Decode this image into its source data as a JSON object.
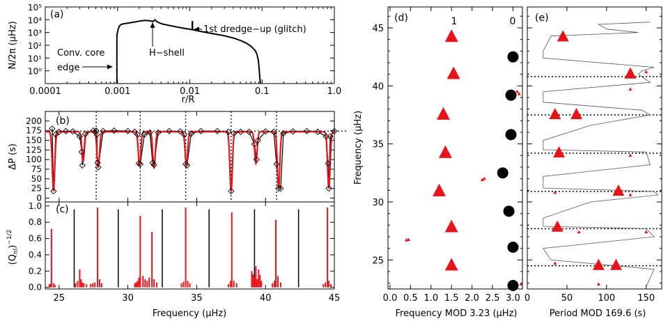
{
  "colors": {
    "red": "#e8141b",
    "black": "#000000",
    "gray": "#555555"
  },
  "panel_a": {
    "label": "(a)",
    "ylabel": "N/2π (μHz)",
    "xlabel": "r/R",
    "x_ticks": [
      "0.0001",
      "0.001",
      "0.01",
      "0.1",
      "1.0"
    ],
    "y_ticks": [
      "10⁰",
      "10¹",
      "10²",
      "10³",
      "10⁴",
      "10⁵"
    ],
    "ann_core": "Conv. core",
    "ann_edge": "edge",
    "ann_hshell": "H−shell",
    "ann_dredge": "1st dredge−up (glitch)"
  },
  "panel_b": {
    "label": "(b)",
    "ylabel": "ΔP (s)",
    "y_ticks": [
      "0",
      "25",
      "50",
      "75",
      "100",
      "125",
      "150",
      "175",
      "200"
    ]
  },
  "panel_c": {
    "label": "(c)",
    "ylabel": "(Q_nl)^−1/2",
    "y_ticks": [
      "0.0",
      "0.2",
      "0.4",
      "0.6",
      "0.8",
      "1.0"
    ],
    "x_ticks": [
      "25",
      "30",
      "35",
      "40",
      "45"
    ],
    "xlabel": "Frequency (μHz)"
  },
  "panel_d": {
    "label": "(d)",
    "deg1": "1",
    "deg0": "0",
    "ylabel": "Frequency (μHz)",
    "xlabel": "Frequency MOD 3.23 (μHz)",
    "x_ticks": [
      "0.0",
      "0.5",
      "1.0",
      "1.5",
      "2.0",
      "2.5",
      "3.0"
    ],
    "y_ticks": [
      "25",
      "30",
      "35",
      "40",
      "45"
    ]
  },
  "panel_e": {
    "label": "(e)",
    "xlabel": "Period MOD 169.6 (s)",
    "x_ticks": [
      "0",
      "50",
      "100",
      "150"
    ]
  },
  "chart_data": [
    {
      "type": "line",
      "panel": "a",
      "xscale": "log",
      "yscale": "log",
      "xlim": [
        0.0001,
        1.0
      ],
      "ylim": [
        0.1,
        100000
      ],
      "xlabel": "r/R",
      "ylabel": "N/2π (μHz)",
      "x": [
        0.00098,
        0.00098,
        0.00102,
        0.00106,
        0.00112,
        0.0012,
        0.0014,
        0.0017,
        0.002,
        0.0024,
        0.0028,
        0.0031,
        0.0033,
        0.0035,
        0.0038,
        0.0042,
        0.005,
        0.006,
        0.008,
        0.0105,
        0.0108,
        0.0108,
        0.0109,
        0.0109,
        0.012,
        0.015,
        0.02,
        0.03,
        0.04,
        0.05,
        0.06,
        0.07,
        0.08,
        0.085,
        0.089,
        0.091,
        0.093,
        0.095
      ],
      "y": [
        0.1,
        600,
        1800,
        3200,
        4200,
        4800,
        5500,
        6500,
        7800,
        9000,
        8200,
        7200,
        9800,
        7000,
        5600,
        4600,
        3700,
        3000,
        2200,
        1700,
        1700,
        7000,
        7000,
        1650,
        1450,
        1150,
        850,
        560,
        370,
        240,
        150,
        85,
        40,
        20,
        6,
        1.5,
        0.3,
        0.1
      ]
    },
    {
      "type": "scatter",
      "panel": "b",
      "xlim": [
        24,
        45
      ],
      "ylim": [
        -10,
        225
      ],
      "xlabel": "Frequency (μHz)",
      "ylabel": "ΔP (s)",
      "asymptote": 174,
      "dotted_vlines": [
        27.7,
        30.9,
        34.2,
        37.5,
        40.8
      ],
      "markers": [
        [
          24.5,
          180
        ],
        [
          24.6,
          18
        ],
        [
          24.75,
          165
        ],
        [
          25,
          172
        ],
        [
          25.5,
          174
        ],
        [
          26,
          173
        ],
        [
          26.5,
          160
        ],
        [
          26.65,
          120
        ],
        [
          26.7,
          85
        ],
        [
          26.9,
          166
        ],
        [
          27.5,
          175
        ],
        [
          27.7,
          175
        ],
        [
          27.75,
          165
        ],
        [
          27.8,
          92
        ],
        [
          27.85,
          80
        ],
        [
          28.2,
          174
        ],
        [
          29,
          175
        ],
        [
          30,
          174
        ],
        [
          30.5,
          172
        ],
        [
          30.7,
          165
        ],
        [
          30.8,
          90
        ],
        [
          30.9,
          88
        ],
        [
          31.2,
          165
        ],
        [
          31.6,
          170
        ],
        [
          31.8,
          92
        ],
        [
          31.9,
          86
        ],
        [
          32.2,
          170
        ],
        [
          33,
          174
        ],
        [
          33.8,
          173
        ],
        [
          34.1,
          165
        ],
        [
          34.2,
          88
        ],
        [
          34.3,
          85
        ],
        [
          34.6,
          167
        ],
        [
          35.3,
          174
        ],
        [
          36.5,
          174
        ],
        [
          37.3,
          172
        ],
        [
          37.5,
          18
        ],
        [
          37.7,
          168
        ],
        [
          38.2,
          172
        ],
        [
          38.8,
          172
        ],
        [
          39.2,
          140
        ],
        [
          39.35,
          100
        ],
        [
          39.45,
          150
        ],
        [
          40,
          173
        ],
        [
          40.6,
          172
        ],
        [
          40.8,
          88
        ],
        [
          40.95,
          25
        ],
        [
          41.1,
          25
        ],
        [
          41.3,
          168
        ],
        [
          42,
          173
        ],
        [
          43,
          174
        ],
        [
          43.8,
          172
        ],
        [
          44.4,
          160
        ],
        [
          44.55,
          90
        ],
        [
          44.6,
          25
        ],
        [
          44.7,
          160
        ],
        [
          45,
          174
        ]
      ],
      "model_dips": [
        [
          24.6,
          18
        ],
        [
          26.75,
          95
        ],
        [
          27.85,
          80
        ],
        [
          30.85,
          85
        ],
        [
          31.9,
          80
        ],
        [
          34.25,
          85
        ],
        [
          37.5,
          18
        ],
        [
          39.3,
          90
        ],
        [
          40.95,
          25
        ],
        [
          44.6,
          25
        ]
      ]
    },
    {
      "type": "bar",
      "panel": "c",
      "xlim": [
        24,
        45
      ],
      "ylim": [
        -0.02,
        1.05
      ],
      "black_lines": [
        26.1,
        29.3,
        32.5,
        35.9,
        39.2,
        42.4
      ],
      "black_heights": [
        0.96,
        0.96,
        0.96,
        0.96,
        0.96,
        0.96
      ],
      "x": [
        24.3,
        24.4,
        24.45,
        24.6,
        24.7,
        26.2,
        26.35,
        26.5,
        26.6,
        26.7,
        26.8,
        27.0,
        27.3,
        27.45,
        27.6,
        27.8,
        27.95,
        28.1,
        30.5,
        30.6,
        30.7,
        30.8,
        30.9,
        31.1,
        31.25,
        31.4,
        31.55,
        31.75,
        31.9,
        32.1,
        33.9,
        34.05,
        34.2,
        34.35,
        34.5,
        37.3,
        37.45,
        37.55,
        37.7,
        37.9,
        39.0,
        39.1,
        39.2,
        39.3,
        39.4,
        39.5,
        39.6,
        39.7,
        40.5,
        40.65,
        40.75,
        40.9,
        41.1,
        44.2,
        44.35,
        44.5,
        44.6,
        44.75
      ],
      "values": [
        0.04,
        0.04,
        0.72,
        0.05,
        0.03,
        0.05,
        0.08,
        0.22,
        0.1,
        0.06,
        0.05,
        0.04,
        0.04,
        0.05,
        0.06,
        0.98,
        0.1,
        0.05,
        0.05,
        0.06,
        0.08,
        0.12,
        0.88,
        0.14,
        0.1,
        0.08,
        0.12,
        0.68,
        0.1,
        0.06,
        0.05,
        0.07,
        0.98,
        0.08,
        0.05,
        0.04,
        0.08,
        0.92,
        0.08,
        0.05,
        0.2,
        0.16,
        0.12,
        0.26,
        0.1,
        0.22,
        0.15,
        0.08,
        0.05,
        0.08,
        0.83,
        0.14,
        0.06,
        0.04,
        0.06,
        0.98,
        0.08,
        0.04
      ]
    },
    {
      "type": "scatter",
      "panel": "d",
      "xlim": [
        -0.05,
        3.23
      ],
      "ylim": [
        22.5,
        46.8
      ],
      "l1_big": [
        [
          1.5,
          44.2
        ],
        [
          1.55,
          41
        ],
        [
          1.3,
          37.5
        ],
        [
          1.35,
          34.2
        ],
        [
          1.2,
          30.9
        ],
        [
          1.5,
          27.8
        ],
        [
          1.5,
          24.5
        ]
      ],
      "l0_circles": [
        [
          3.0,
          42.5
        ],
        [
          2.95,
          39.2
        ],
        [
          2.95,
          35.8
        ],
        [
          2.75,
          32.5
        ],
        [
          2.9,
          29.2
        ],
        [
          3.0,
          26.1
        ],
        [
          3.0,
          22.8
        ]
      ],
      "small": [
        [
          3.1,
          39.5
        ],
        [
          3.15,
          39.3
        ],
        [
          2.25,
          31.9
        ],
        [
          2.3,
          32.0
        ],
        [
          0.4,
          26.7
        ],
        [
          0.45,
          26.75
        ],
        [
          3.2,
          22.9
        ]
      ]
    },
    {
      "type": "scatter",
      "panel": "e",
      "xlim": [
        0,
        169.6
      ],
      "ylim": [
        22.5,
        46.8
      ],
      "dotted_hlines": [
        24.5,
        27.7,
        30.9,
        34.2,
        37.5,
        40.8
      ],
      "big": [
        [
          45,
          44.2
        ],
        [
          130,
          41
        ],
        [
          35,
          37.5
        ],
        [
          62,
          37.5
        ],
        [
          40,
          34.2
        ],
        [
          115,
          30.9
        ],
        [
          38,
          27.8
        ],
        [
          90,
          24.5
        ],
        [
          112,
          24.5
        ]
      ],
      "small": [
        [
          150,
          41.2
        ],
        [
          130,
          39.7
        ],
        [
          35,
          37.3
        ],
        [
          130,
          34.0
        ],
        [
          35,
          30.8
        ],
        [
          130,
          30.6
        ],
        [
          65,
          27.4
        ],
        [
          150,
          27.4
        ],
        [
          35,
          24.7
        ],
        [
          90,
          22.9
        ]
      ],
      "line_x": [
        155,
        90,
        100,
        140,
        30,
        20,
        20,
        160,
        145,
        140,
        155,
        20,
        20,
        145,
        155,
        80,
        20,
        20,
        150,
        155,
        20,
        20,
        160,
        165,
        80,
        20,
        20,
        150,
        160,
        20,
        30,
        160,
        150
      ],
      "line_y": [
        45.5,
        45.3,
        44.9,
        44.6,
        44.3,
        43,
        42.4,
        41.6,
        41.3,
        41,
        40.3,
        39.5,
        38.6,
        37.9,
        37.5,
        36.6,
        35.3,
        34.5,
        34.3,
        33.2,
        32.2,
        31.2,
        30.9,
        30.6,
        30.0,
        28.6,
        27.9,
        27.7,
        27,
        26,
        25,
        24.2,
        22.7
      ]
    }
  ]
}
